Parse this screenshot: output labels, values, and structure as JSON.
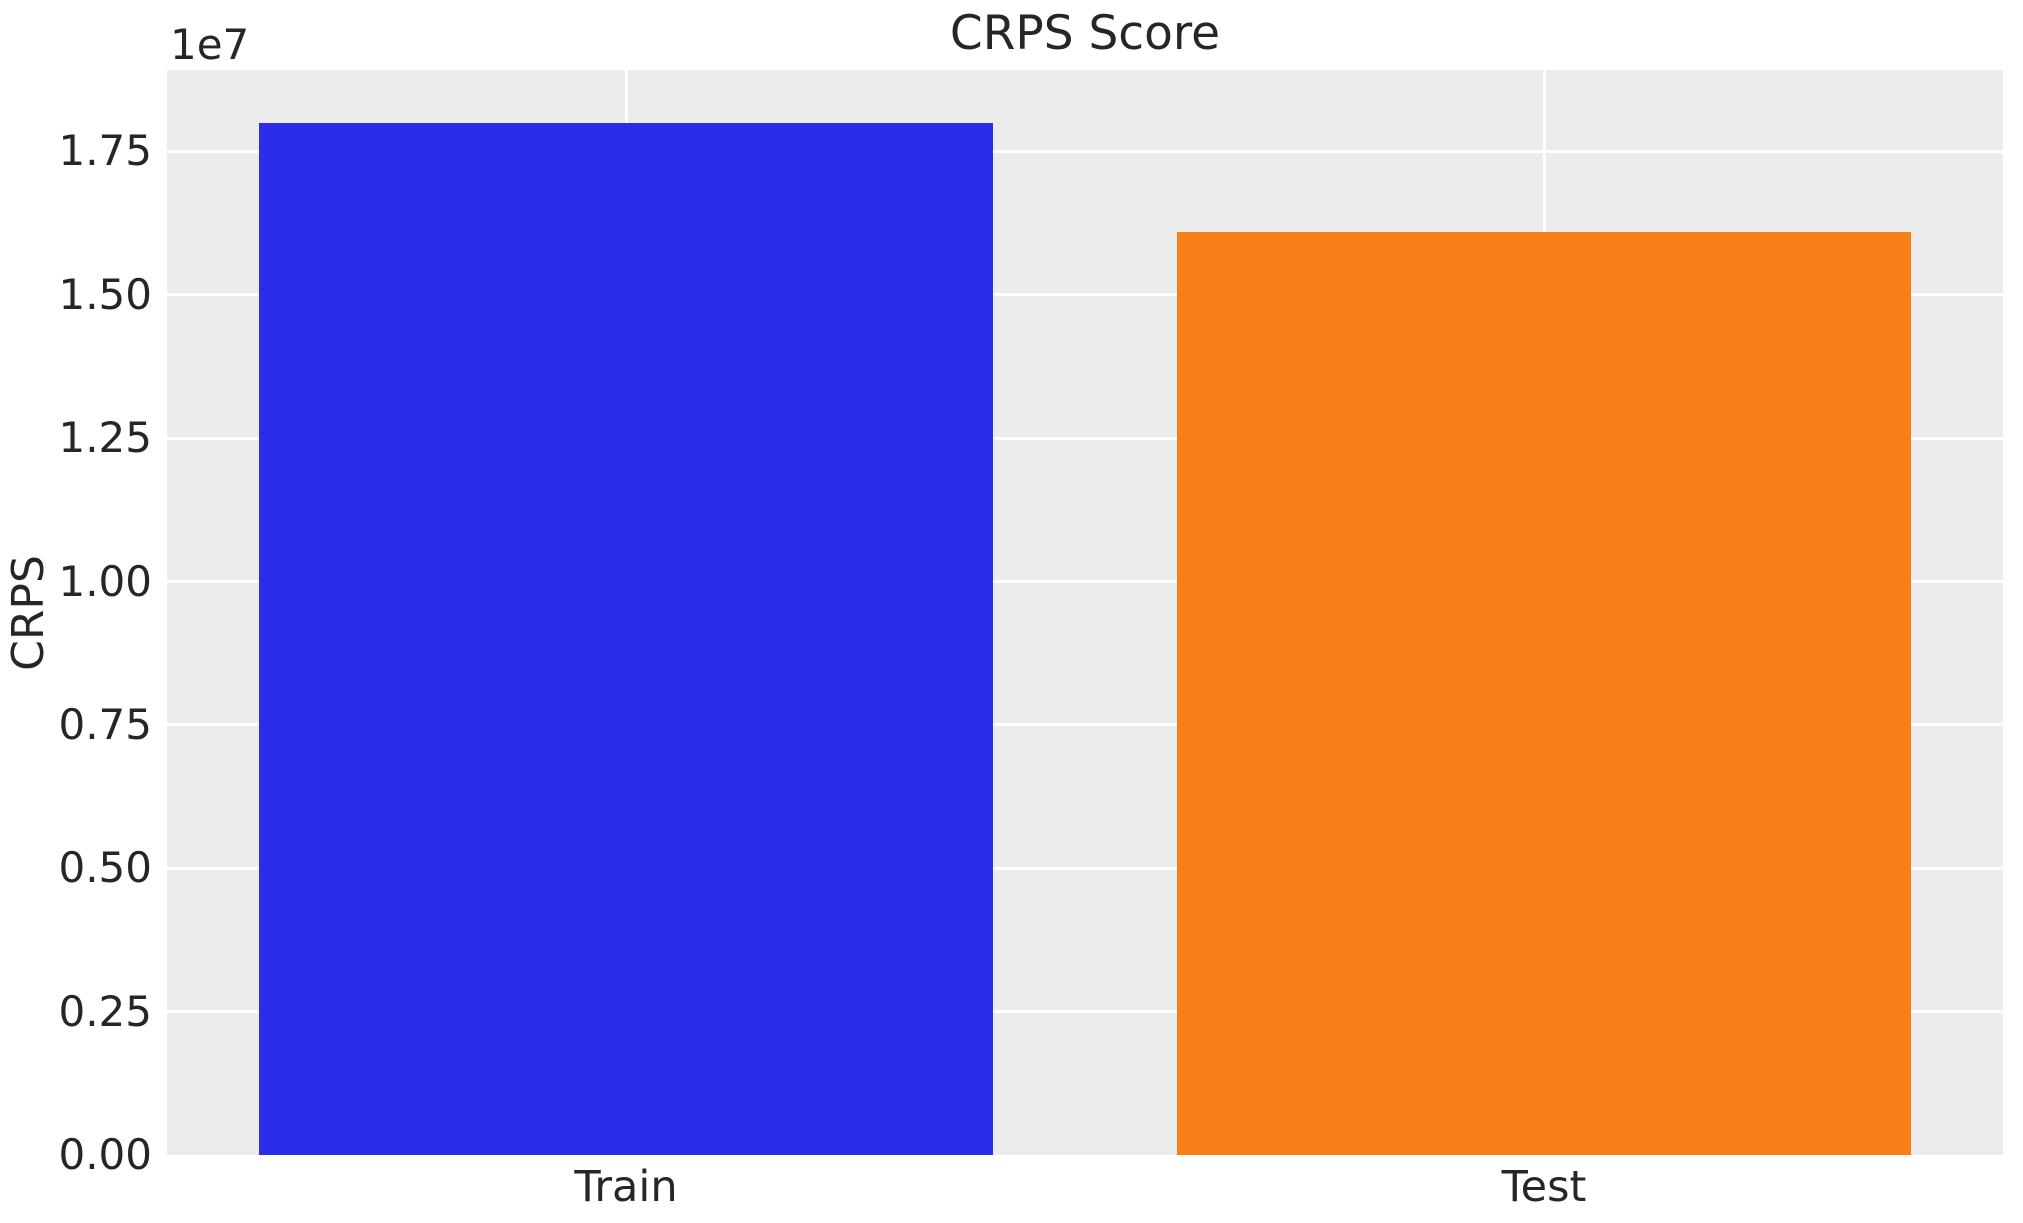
{
  "chart_data": {
    "type": "bar",
    "title": "CRPS Score",
    "ylabel": "CRPS",
    "offset_label": "1e7",
    "categories": [
      "Train",
      "Test"
    ],
    "values": [
      18000000,
      16100000
    ],
    "bar_colors": [
      "#2b2de8",
      "#f87f17"
    ],
    "ylim": [
      0,
      18920000
    ],
    "yticks": [
      0,
      2500000,
      5000000,
      7500000,
      10000000,
      12500000,
      15000000,
      17500000
    ],
    "ytick_labels": [
      "0.00",
      "0.25",
      "0.50",
      "0.75",
      "1.00",
      "1.25",
      "1.50",
      "1.75"
    ],
    "grid": true,
    "legend": false,
    "bar_width_fraction": 0.4,
    "plot_bg_color": "#ececec",
    "grid_color": "#ffffff",
    "figure_bg_color": "#ffffff",
    "text_color": "#262626"
  }
}
